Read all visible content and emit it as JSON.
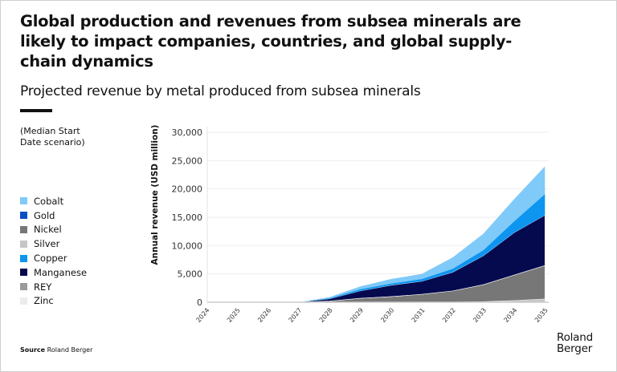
{
  "header": {
    "title": "Global production and revenues from subsea minerals are likely to impact companies, countries, and global supply-chain dynamics",
    "subtitle": "Projected revenue by metal produced from subsea minerals"
  },
  "scenario_note": "(Median Start Date scenario)",
  "source": {
    "label": "Source",
    "text": "Roland Berger"
  },
  "logo": {
    "line1": "Roland",
    "line2": "Berger"
  },
  "legend": [
    {
      "name": "Cobalt",
      "color": "#7fcaf8"
    },
    {
      "name": "Gold",
      "color": "#0a4fc4"
    },
    {
      "name": "Nickel",
      "color": "#777777"
    },
    {
      "name": "Silver",
      "color": "#c6c6c6"
    },
    {
      "name": "Copper",
      "color": "#0d95f0"
    },
    {
      "name": "Manganese",
      "color": "#050a4f"
    },
    {
      "name": "REY",
      "color": "#9a9a9a"
    },
    {
      "name": "Zinc",
      "color": "#ececec"
    }
  ],
  "chart_data": {
    "type": "area",
    "stacked": true,
    "xlabel": "",
    "ylabel": "Annual revenue (USD million)",
    "ylim": [
      0,
      30000
    ],
    "yticks": [
      "0",
      "5,000",
      "10,000",
      "15,000",
      "20,000",
      "25,000",
      "30,000"
    ],
    "categories": [
      "2024",
      "2025",
      "2026",
      "2027",
      "2028",
      "2029",
      "2030",
      "2031",
      "2032",
      "2033",
      "2034",
      "2035"
    ],
    "grid": true,
    "legend_position": "left",
    "series": [
      {
        "name": "Zinc",
        "color": "#ececec",
        "values": [
          0,
          0,
          0,
          0,
          0,
          0,
          0,
          0,
          0,
          20,
          50,
          80
        ]
      },
      {
        "name": "REY",
        "color": "#9a9a9a",
        "values": [
          0,
          0,
          0,
          0,
          0,
          0,
          0,
          0,
          0,
          0,
          0,
          0
        ]
      },
      {
        "name": "Silver",
        "color": "#c6c6c6",
        "values": [
          0,
          0,
          0,
          0,
          0,
          0,
          0,
          0,
          30,
          80,
          250,
          500
        ]
      },
      {
        "name": "Nickel",
        "color": "#777777",
        "values": [
          0,
          0,
          0,
          0,
          200,
          700,
          1000,
          1400,
          1970,
          3000,
          4500,
          5900
        ]
      },
      {
        "name": "Manganese",
        "color": "#050a4f",
        "values": [
          0,
          0,
          0,
          0,
          400,
          1300,
          2000,
          2300,
          3300,
          5100,
          7500,
          8900
        ]
      },
      {
        "name": "Gold",
        "color": "#0a4fc4",
        "values": [
          0,
          0,
          0,
          0,
          0,
          0,
          0,
          0,
          0,
          0,
          0,
          0
        ]
      },
      {
        "name": "Copper",
        "color": "#0d95f0",
        "values": [
          0,
          0,
          0,
          0,
          100,
          300,
          300,
          400,
          600,
          1000,
          2000,
          3700
        ]
      },
      {
        "name": "Cobalt",
        "color": "#7fcaf8",
        "values": [
          0,
          0,
          0,
          0,
          200,
          500,
          800,
          900,
          2000,
          2900,
          3900,
          4900
        ]
      }
    ]
  }
}
